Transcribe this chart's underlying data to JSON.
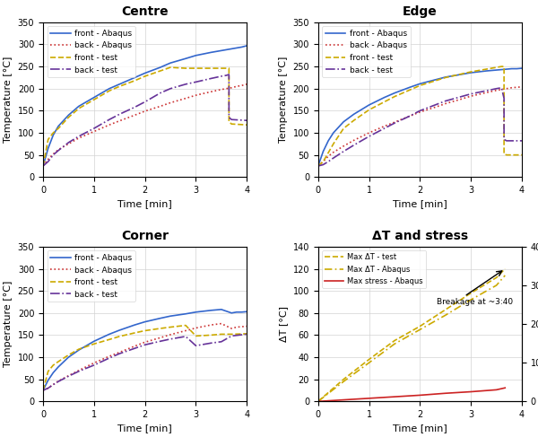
{
  "titles": [
    "Centre",
    "Edge",
    "Corner",
    "ΔT and stress"
  ],
  "temp_ylim": [
    0,
    350
  ],
  "temp_yticks": [
    0,
    50,
    100,
    150,
    200,
    250,
    300,
    350
  ],
  "time_xlim": [
    0,
    4
  ],
  "time_xticks": [
    0,
    1,
    2,
    3,
    4
  ],
  "colors": {
    "front_abaqus": "#3366cc",
    "back_abaqus": "#cc3333",
    "front_test": "#ccaa00",
    "back_test": "#663399"
  },
  "centre": {
    "front_abaqus_t": [
      0,
      0.1,
      0.2,
      0.3,
      0.5,
      0.7,
      1.0,
      1.3,
      1.5,
      1.8,
      2.0,
      2.3,
      2.5,
      2.8,
      3.0,
      3.3,
      3.5,
      3.7,
      3.8,
      3.9,
      4.0
    ],
    "front_abaqus_T": [
      25,
      65,
      95,
      115,
      140,
      160,
      180,
      200,
      210,
      225,
      235,
      248,
      258,
      268,
      275,
      282,
      286,
      290,
      292,
      294,
      297
    ],
    "back_abaqus_t": [
      0,
      0.1,
      0.2,
      0.3,
      0.5,
      0.7,
      1.0,
      1.3,
      1.5,
      1.8,
      2.0,
      2.3,
      2.5,
      2.8,
      3.0,
      3.3,
      3.5,
      3.7,
      3.8,
      3.9,
      4.0
    ],
    "back_abaqus_T": [
      25,
      40,
      52,
      62,
      75,
      88,
      103,
      118,
      127,
      140,
      149,
      160,
      168,
      178,
      185,
      193,
      198,
      202,
      205,
      207,
      210
    ],
    "front_test_t": [
      0,
      0.1,
      0.2,
      0.3,
      0.5,
      0.7,
      1.0,
      1.3,
      1.5,
      1.8,
      2.0,
      2.3,
      2.5,
      2.8,
      3.0,
      3.3,
      3.5,
      3.6,
      3.65,
      3.65,
      3.7,
      4.0
    ],
    "front_test_T": [
      25,
      85,
      100,
      110,
      135,
      155,
      175,
      195,
      205,
      218,
      228,
      240,
      248,
      246,
      246,
      246,
      246,
      246,
      246,
      125,
      120,
      118
    ],
    "back_test_t": [
      0,
      0.1,
      0.2,
      0.3,
      0.5,
      0.7,
      1.0,
      1.3,
      1.5,
      1.8,
      2.0,
      2.3,
      2.5,
      2.8,
      3.0,
      3.3,
      3.5,
      3.6,
      3.65,
      3.65,
      3.7,
      4.0
    ],
    "back_test_T": [
      25,
      35,
      50,
      60,
      78,
      92,
      110,
      130,
      142,
      158,
      170,
      190,
      200,
      210,
      215,
      223,
      228,
      230,
      232,
      135,
      130,
      128
    ]
  },
  "edge": {
    "front_abaqus_t": [
      0,
      0.1,
      0.2,
      0.3,
      0.5,
      0.7,
      1.0,
      1.3,
      1.5,
      1.8,
      2.0,
      2.3,
      2.5,
      2.8,
      3.0,
      3.3,
      3.5,
      3.7,
      3.8,
      3.9,
      4.0
    ],
    "front_abaqus_T": [
      25,
      58,
      82,
      100,
      125,
      142,
      163,
      180,
      190,
      203,
      211,
      220,
      226,
      232,
      236,
      240,
      242,
      244,
      245,
      245,
      246
    ],
    "back_abaqus_t": [
      0,
      0.1,
      0.2,
      0.3,
      0.5,
      0.7,
      1.0,
      1.3,
      1.5,
      1.8,
      2.0,
      2.3,
      2.5,
      2.8,
      3.0,
      3.3,
      3.5,
      3.7,
      3.8,
      3.9,
      4.0
    ],
    "back_abaqus_T": [
      25,
      35,
      47,
      56,
      70,
      83,
      100,
      115,
      124,
      138,
      147,
      158,
      166,
      176,
      183,
      191,
      196,
      200,
      202,
      203,
      204
    ],
    "front_test_t": [
      0,
      0.1,
      0.2,
      0.3,
      0.5,
      0.7,
      1.0,
      1.3,
      1.5,
      1.8,
      2.0,
      2.5,
      3.0,
      3.5,
      3.6,
      3.65,
      3.65,
      3.7,
      4.0
    ],
    "front_test_T": [
      25,
      35,
      55,
      75,
      110,
      128,
      152,
      170,
      182,
      197,
      207,
      225,
      238,
      248,
      250,
      250,
      52,
      50,
      50
    ],
    "back_test_t": [
      0,
      0.1,
      0.2,
      0.3,
      0.5,
      0.7,
      1.0,
      1.3,
      1.5,
      1.8,
      2.0,
      2.5,
      3.0,
      3.5,
      3.6,
      3.65,
      3.65,
      3.7,
      4.0
    ],
    "back_test_T": [
      25,
      28,
      35,
      43,
      58,
      72,
      92,
      110,
      122,
      138,
      150,
      172,
      188,
      200,
      202,
      178,
      85,
      82,
      82
    ]
  },
  "corner": {
    "front_abaqus_t": [
      0,
      0.1,
      0.2,
      0.3,
      0.5,
      0.7,
      1.0,
      1.3,
      1.5,
      1.8,
      2.0,
      2.3,
      2.5,
      2.8,
      3.0,
      3.3,
      3.5,
      3.7,
      3.8,
      3.9,
      4.0
    ],
    "front_abaqus_T": [
      25,
      48,
      65,
      78,
      100,
      116,
      136,
      152,
      161,
      173,
      180,
      188,
      193,
      198,
      202,
      206,
      208,
      200,
      202,
      202,
      203
    ],
    "back_abaqus_t": [
      0,
      0.1,
      0.2,
      0.3,
      0.5,
      0.7,
      1.0,
      1.3,
      1.5,
      1.8,
      2.0,
      2.3,
      2.5,
      2.8,
      3.0,
      3.3,
      3.5,
      3.7,
      3.8,
      3.9,
      4.0
    ],
    "back_abaqus_T": [
      25,
      30,
      38,
      46,
      58,
      70,
      87,
      102,
      111,
      125,
      134,
      144,
      151,
      160,
      166,
      173,
      176,
      165,
      168,
      169,
      170
    ],
    "front_test_t": [
      0,
      0.1,
      0.2,
      0.3,
      0.5,
      0.7,
      1.0,
      1.3,
      1.5,
      1.8,
      2.0,
      2.3,
      2.5,
      2.8,
      3.0,
      3.3,
      3.5,
      3.7,
      4.0
    ],
    "front_test_T": [
      25,
      68,
      82,
      90,
      105,
      118,
      130,
      140,
      147,
      155,
      160,
      165,
      168,
      172,
      148,
      150,
      152,
      152,
      153
    ],
    "back_test_t": [
      0,
      0.1,
      0.2,
      0.3,
      0.5,
      0.7,
      1.0,
      1.3,
      1.5,
      1.8,
      2.0,
      2.3,
      2.5,
      2.8,
      3.0,
      3.3,
      3.5,
      3.7,
      4.0
    ],
    "back_test_T": [
      25,
      30,
      38,
      45,
      57,
      68,
      82,
      98,
      108,
      120,
      128,
      136,
      141,
      147,
      126,
      132,
      135,
      148,
      152
    ]
  },
  "stress": {
    "max_dT_test_t": [
      0,
      0.5,
      1.0,
      1.5,
      2.0,
      2.5,
      3.0,
      3.5,
      3.67
    ],
    "max_dT_test_T": [
      0,
      20,
      38,
      55,
      68,
      83,
      98,
      112,
      120
    ],
    "max_dT_abaqus_t": [
      0,
      0.5,
      1.0,
      1.5,
      2.0,
      2.5,
      3.0,
      3.5,
      3.67
    ],
    "max_dT_abaqus_T": [
      0,
      18,
      35,
      52,
      65,
      78,
      92,
      105,
      114
    ],
    "max_stress_t": [
      0,
      0.5,
      1.0,
      1.5,
      2.0,
      2.5,
      3.0,
      3.5,
      3.67
    ],
    "max_stress_v": [
      0,
      0.4,
      0.8,
      1.2,
      1.6,
      2.1,
      2.5,
      3.0,
      3.5
    ],
    "breakage_t": 3.67,
    "breakage_dT": 120,
    "breakage_stress": 3.5,
    "dT_ylim": [
      0,
      140
    ],
    "dT_yticks": [
      0,
      20,
      40,
      60,
      80,
      100,
      120,
      140
    ],
    "stress_ylim": [
      0,
      40
    ],
    "stress_yticks": [
      0,
      10,
      20,
      30,
      40
    ]
  }
}
